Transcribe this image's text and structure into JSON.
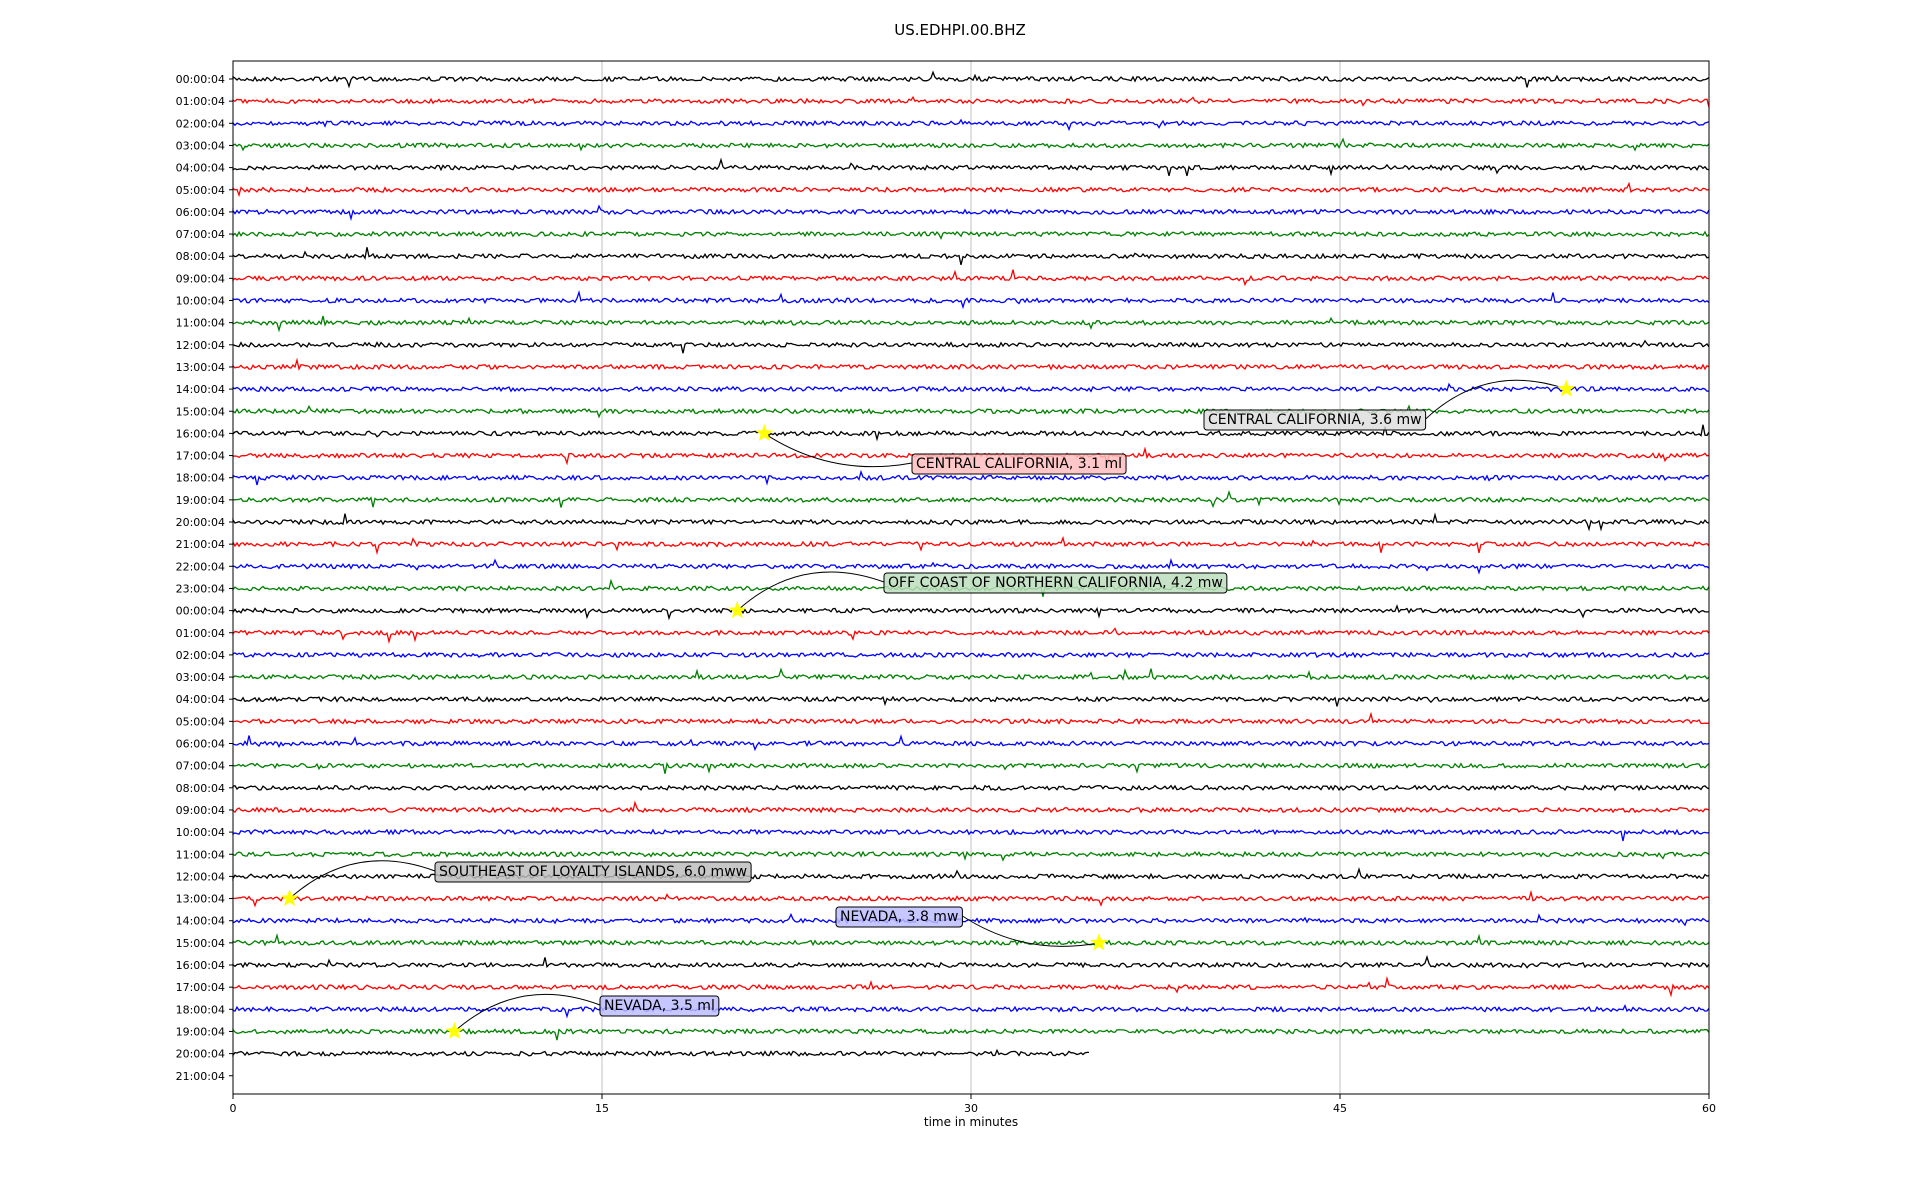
{
  "chart_data": {
    "type": "line",
    "title": "US.EDHPI.00.BHZ",
    "xlabel": "time in minutes",
    "ylabel": "",
    "xlim": [
      0,
      60
    ],
    "x_ticks": [
      0,
      15,
      30,
      45,
      60
    ],
    "grid": "vertical lines at x ticks",
    "trace_colors": [
      "#000000",
      "#ff0000",
      "#0000ff",
      "#008000"
    ],
    "last_trace_end_minutes": 34.8,
    "row_labels": [
      "00:00:04",
      "01:00:04",
      "02:00:04",
      "03:00:04",
      "04:00:04",
      "05:00:04",
      "06:00:04",
      "07:00:04",
      "08:00:04",
      "09:00:04",
      "10:00:04",
      "11:00:04",
      "12:00:04",
      "13:00:04",
      "14:00:04",
      "15:00:04",
      "16:00:04",
      "17:00:04",
      "18:00:04",
      "19:00:04",
      "20:00:04",
      "21:00:04",
      "22:00:04",
      "23:00:04",
      "00:00:04",
      "01:00:04",
      "02:00:04",
      "03:00:04",
      "04:00:04",
      "05:00:04",
      "06:00:04",
      "07:00:04",
      "08:00:04",
      "09:00:04",
      "10:00:04",
      "11:00:04",
      "12:00:04",
      "13:00:04",
      "14:00:04",
      "15:00:04",
      "16:00:04",
      "17:00:04",
      "18:00:04",
      "19:00:04",
      "20:00:04",
      "21:00:04"
    ],
    "annotations": [
      {
        "text": "CENTRAL CALIFORNIA, 3.6 mw",
        "row": 14,
        "minute": 54.2,
        "box_color": "#7f7f7f"
      },
      {
        "text": "CENTRAL CALIFORNIA, 3.1 ml",
        "row": 16,
        "minute": 21.6,
        "box_color": "#ff0000"
      },
      {
        "text": "OFF COAST OF NORTHERN CALIFORNIA, 4.2 mw",
        "row": 24,
        "minute": 20.5,
        "box_color": "#008000"
      },
      {
        "text": "SOUTHEAST OF LOYALTY ISLANDS, 6.0 mww",
        "row": 37,
        "minute": 2.3,
        "box_color": "#000000"
      },
      {
        "text": "NEVADA, 3.8 mw",
        "row": 39,
        "minute": 35.2,
        "box_color": "#0000ff"
      },
      {
        "text": "NEVADA, 3.5 ml",
        "row": 43,
        "minute": 9.0,
        "box_color": "#0000ff"
      }
    ],
    "marker": {
      "shape": "star",
      "color": "#ffff00"
    }
  }
}
